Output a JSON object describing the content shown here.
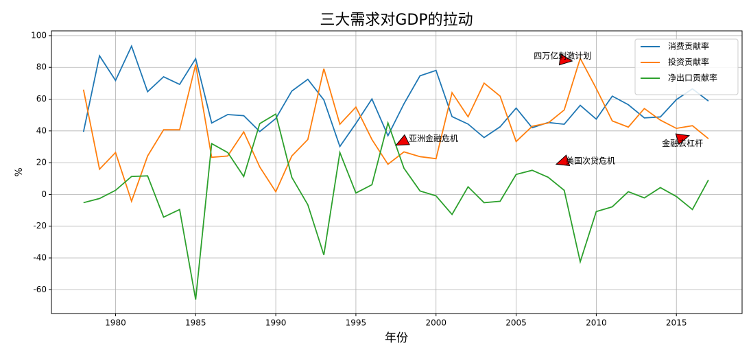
{
  "chart_data": {
    "type": "line",
    "title": "三大需求对GDP的拉动",
    "xlabel": "年份",
    "ylabel": "%",
    "x": [
      1978,
      1979,
      1980,
      1981,
      1982,
      1983,
      1984,
      1985,
      1986,
      1987,
      1988,
      1989,
      1990,
      1991,
      1992,
      1993,
      1994,
      1995,
      1996,
      1997,
      1998,
      1999,
      2000,
      2001,
      2002,
      2003,
      2004,
      2005,
      2006,
      2007,
      2008,
      2009,
      2010,
      2011,
      2012,
      2013,
      2014,
      2015,
      2016,
      2017
    ],
    "series": [
      {
        "name": "消费贡献率",
        "color": "#1f77b4",
        "values": [
          39.4,
          87.3,
          71.8,
          93.4,
          64.7,
          74.1,
          69.3,
          85.5,
          45.0,
          50.3,
          49.6,
          39.6,
          47.8,
          65.1,
          72.5,
          59.5,
          30.2,
          44.7,
          60.1,
          37.0,
          57.1,
          74.7,
          78.1,
          49.0,
          44.3,
          35.8,
          42.6,
          54.4,
          42.0,
          45.3,
          44.2,
          56.1,
          47.4,
          61.9,
          56.5,
          48.2,
          48.8,
          59.7,
          66.5,
          58.8
        ]
      },
      {
        "name": "投资贡献率",
        "color": "#ff7f0e",
        "values": [
          66.0,
          15.9,
          26.4,
          -4.3,
          24.2,
          40.7,
          40.7,
          81.8,
          23.4,
          24.2,
          39.4,
          17.3,
          1.7,
          24.2,
          34.6,
          79.2,
          44.2,
          55.0,
          34.6,
          19.0,
          26.8,
          23.8,
          22.5,
          64.1,
          48.9,
          70.1,
          61.9,
          33.3,
          42.9,
          45.0,
          53.2,
          85.7,
          66.7,
          46.3,
          42.4,
          54.1,
          46.8,
          41.6,
          43.3,
          35.1
        ]
      },
      {
        "name": "净出口贡献率",
        "color": "#2ca02c",
        "values": [
          -5.2,
          -2.6,
          2.6,
          11.3,
          11.7,
          -14.3,
          -9.5,
          -66.2,
          32.0,
          26.4,
          11.3,
          44.6,
          50.6,
          10.8,
          -6.5,
          -38.1,
          26.4,
          0.9,
          6.1,
          45.0,
          16.5,
          2.2,
          -0.9,
          -12.6,
          4.8,
          -5.2,
          -4.3,
          12.6,
          15.2,
          10.8,
          2.6,
          -42.4,
          -10.8,
          -7.8,
          1.7,
          -2.2,
          4.3,
          -1.3,
          -9.5,
          9.1
        ]
      }
    ],
    "annotations": [
      {
        "text": "亚洲金融危机",
        "xy": [
          1997.5,
          31
        ],
        "xytext": [
          1998.3,
          35
        ]
      },
      {
        "text": "四万亿刺激计划",
        "xy": [
          2008.5,
          84
        ],
        "xytext": [
          2006.1,
          87
        ]
      },
      {
        "text": "美国次贷危机",
        "xy": [
          2007.5,
          19
        ],
        "xytext": [
          2008.1,
          21
        ]
      },
      {
        "text": "金融去杠杆",
        "xy": [
          2015.8,
          37
        ],
        "xytext": [
          2014.1,
          32
        ]
      }
    ],
    "xlim": [
      1976,
      2019.1
    ],
    "xticks": [
      1980,
      1985,
      1990,
      1995,
      2000,
      2005,
      2010,
      2015
    ],
    "ylim": [
      -75,
      103
    ],
    "yticks": [
      -60,
      -40,
      -20,
      0,
      20,
      40,
      60,
      80,
      100
    ],
    "grid": true,
    "legend": "upper right"
  }
}
